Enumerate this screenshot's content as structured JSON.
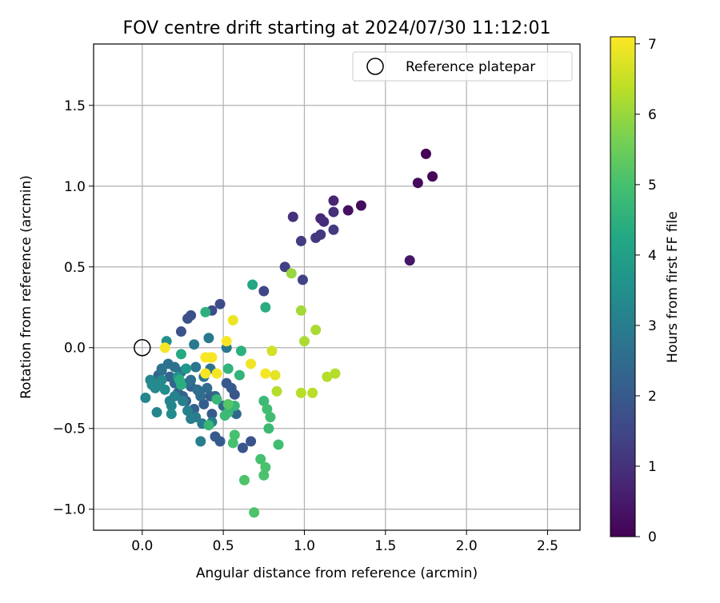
{
  "chart_data": {
    "type": "scatter",
    "title": "FOV centre drift starting at 2024/07/30 11:12:01",
    "xlabel": "Angular distance from reference (arcmin)",
    "ylabel": "Rotation from reference (arcmin)",
    "xlim": [
      -0.3,
      2.7
    ],
    "ylim": [
      -1.13,
      1.88
    ],
    "xticks": [
      0.0,
      0.5,
      1.0,
      1.5,
      2.0,
      2.5
    ],
    "xtick_labels": [
      "0.0",
      "0.5",
      "1.0",
      "1.5",
      "2.0",
      "2.5"
    ],
    "yticks": [
      -1.0,
      -0.5,
      0.0,
      0.5,
      1.0,
      1.5
    ],
    "ytick_labels": [
      "−1.0",
      "−0.5",
      "0.0",
      "0.5",
      "1.0",
      "1.5"
    ],
    "grid": true,
    "legend": {
      "placement": "top-right",
      "entries": [
        "Reference platepar"
      ]
    },
    "colorbar": {
      "label": "Hours from first FF file",
      "colormap": "viridis",
      "range": [
        0,
        7.1
      ],
      "ticks": [
        0,
        1,
        2,
        3,
        4,
        5,
        6,
        7
      ],
      "tick_labels": [
        "0",
        "1",
        "2",
        "3",
        "4",
        "5",
        "6",
        "7"
      ]
    },
    "reference_point": {
      "x": 0.0,
      "y": 0.0
    },
    "series": [
      {
        "points": [
          [
            1.75,
            1.2,
            0.05
          ],
          [
            1.79,
            1.06,
            0.1
          ],
          [
            1.7,
            1.02,
            0.15
          ],
          [
            1.35,
            0.88,
            0.2
          ],
          [
            1.27,
            0.85,
            0.3
          ],
          [
            1.65,
            0.54,
            0.4
          ],
          [
            1.18,
            0.91,
            0.7
          ],
          [
            1.1,
            0.8,
            0.8
          ],
          [
            1.12,
            0.78,
            0.9
          ],
          [
            1.18,
            0.84,
            0.95
          ],
          [
            0.93,
            0.81,
            1.0
          ],
          [
            1.1,
            0.7,
            1.1
          ],
          [
            1.07,
            0.68,
            1.15
          ],
          [
            1.18,
            0.73,
            1.2
          ],
          [
            0.98,
            0.66,
            1.25
          ],
          [
            0.88,
            0.5,
            1.3
          ],
          [
            0.99,
            0.42,
            1.4
          ],
          [
            0.75,
            0.35,
            1.5
          ],
          [
            0.48,
            0.27,
            1.6
          ],
          [
            0.43,
            0.23,
            1.65
          ],
          [
            0.3,
            0.2,
            1.7
          ],
          [
            0.28,
            0.18,
            1.75
          ],
          [
            0.24,
            0.1,
            1.8
          ],
          [
            0.67,
            -0.58,
            1.85
          ],
          [
            0.62,
            -0.62,
            1.9
          ],
          [
            0.57,
            -0.29,
            1.9
          ],
          [
            0.52,
            -0.22,
            1.95
          ],
          [
            0.55,
            -0.25,
            2.0
          ],
          [
            0.45,
            -0.55,
            2.0
          ],
          [
            0.48,
            -0.58,
            2.05
          ],
          [
            0.43,
            -0.41,
            2.05
          ],
          [
            0.42,
            -0.3,
            2.1
          ],
          [
            0.38,
            -0.35,
            2.1
          ],
          [
            0.35,
            -0.27,
            2.15
          ],
          [
            0.3,
            -0.24,
            2.15
          ],
          [
            0.32,
            -0.38,
            2.2
          ],
          [
            0.27,
            -0.33,
            2.2
          ],
          [
            0.25,
            -0.3,
            2.25
          ],
          [
            0.22,
            -0.28,
            2.25
          ],
          [
            0.2,
            -0.22,
            2.3
          ],
          [
            0.17,
            -0.18,
            2.3
          ],
          [
            0.12,
            -0.14,
            2.35
          ],
          [
            0.1,
            -0.17,
            2.35
          ],
          [
            0.58,
            -0.41,
            2.4
          ],
          [
            0.53,
            -0.4,
            2.4
          ],
          [
            0.5,
            -0.36,
            2.45
          ],
          [
            0.45,
            -0.3,
            2.45
          ],
          [
            0.4,
            -0.25,
            2.5
          ],
          [
            0.36,
            -0.3,
            2.5
          ],
          [
            0.34,
            -0.26,
            2.55
          ],
          [
            0.3,
            -0.2,
            2.55
          ],
          [
            0.28,
            -0.22,
            2.6
          ],
          [
            0.24,
            -0.15,
            2.6
          ],
          [
            0.2,
            -0.12,
            2.65
          ],
          [
            0.16,
            -0.1,
            2.65
          ],
          [
            0.12,
            -0.13,
            2.7
          ],
          [
            0.42,
            -0.13,
            2.7
          ],
          [
            0.38,
            -0.18,
            2.75
          ],
          [
            0.33,
            -0.12,
            2.75
          ],
          [
            0.52,
            0.0,
            2.8
          ],
          [
            0.41,
            0.06,
            2.85
          ],
          [
            0.32,
            0.02,
            2.9
          ],
          [
            0.37,
            -0.47,
            2.9
          ],
          [
            0.33,
            -0.43,
            2.95
          ],
          [
            0.3,
            -0.44,
            3.0
          ],
          [
            0.36,
            -0.58,
            3.0
          ],
          [
            0.43,
            -0.46,
            3.05
          ],
          [
            0.28,
            -0.39,
            3.1
          ],
          [
            0.25,
            -0.33,
            3.1
          ],
          [
            0.2,
            -0.3,
            3.15
          ],
          [
            0.17,
            -0.33,
            3.15
          ],
          [
            0.18,
            -0.36,
            3.2
          ],
          [
            0.09,
            -0.4,
            3.2
          ],
          [
            0.05,
            -0.2,
            3.25
          ],
          [
            0.02,
            -0.31,
            3.25
          ],
          [
            0.08,
            -0.25,
            3.3
          ],
          [
            0.12,
            -0.2,
            3.3
          ],
          [
            0.1,
            -0.22,
            3.35
          ],
          [
            0.06,
            -0.23,
            3.35
          ],
          [
            0.18,
            -0.41,
            3.4
          ],
          [
            0.14,
            -0.26,
            3.4
          ],
          [
            0.15,
            0.04,
            3.5
          ],
          [
            0.22,
            -0.18,
            3.6
          ],
          [
            0.27,
            -0.13,
            3.7
          ],
          [
            0.68,
            0.39,
            4.2
          ],
          [
            0.76,
            0.25,
            4.4
          ],
          [
            0.39,
            0.22,
            4.5
          ],
          [
            0.61,
            -0.02,
            4.5
          ],
          [
            0.53,
            -0.13,
            4.6
          ],
          [
            0.6,
            -0.17,
            4.6
          ],
          [
            0.46,
            -0.32,
            4.7
          ],
          [
            0.57,
            -0.36,
            4.7
          ],
          [
            0.53,
            -0.4,
            4.8
          ],
          [
            0.51,
            -0.42,
            4.8
          ],
          [
            0.41,
            -0.48,
            4.7
          ],
          [
            0.75,
            -0.33,
            4.8
          ],
          [
            0.77,
            -0.38,
            4.9
          ],
          [
            0.79,
            -0.43,
            4.9
          ],
          [
            0.78,
            -0.5,
            4.8
          ],
          [
            0.84,
            -0.6,
            4.9
          ],
          [
            0.57,
            -0.54,
            5.0
          ],
          [
            0.56,
            -0.59,
            5.0
          ],
          [
            0.73,
            -0.69,
            5.0
          ],
          [
            0.76,
            -0.74,
            5.05
          ],
          [
            0.75,
            -0.79,
            5.05
          ],
          [
            0.63,
            -0.82,
            5.1
          ],
          [
            0.69,
            -1.02,
            5.1
          ],
          [
            0.24,
            -0.04,
            4.3
          ],
          [
            0.23,
            -0.2,
            4.4
          ],
          [
            0.24,
            -0.23,
            4.45
          ],
          [
            0.53,
            -0.35,
            5.2
          ],
          [
            0.92,
            0.46,
            6.0
          ],
          [
            0.98,
            0.23,
            6.1
          ],
          [
            1.07,
            0.11,
            6.2
          ],
          [
            1.0,
            0.04,
            6.2
          ],
          [
            1.14,
            -0.18,
            6.3
          ],
          [
            1.19,
            -0.16,
            6.3
          ],
          [
            0.83,
            -0.27,
            6.3
          ],
          [
            0.98,
            -0.28,
            6.35
          ],
          [
            1.05,
            -0.28,
            6.35
          ],
          [
            0.8,
            -0.02,
            6.6
          ],
          [
            0.82,
            -0.17,
            6.8
          ],
          [
            0.56,
            0.17,
            6.9
          ],
          [
            0.67,
            -0.1,
            6.95
          ],
          [
            0.76,
            -0.16,
            7.0
          ],
          [
            0.46,
            -0.16,
            7.0
          ],
          [
            0.14,
            0.0,
            7.0
          ],
          [
            0.42,
            -0.06,
            7.0
          ],
          [
            0.52,
            0.04,
            7.05
          ],
          [
            0.39,
            -0.06,
            7.05
          ],
          [
            0.43,
            -0.06,
            7.05
          ],
          [
            0.39,
            -0.16,
            7.05
          ]
        ]
      }
    ]
  }
}
